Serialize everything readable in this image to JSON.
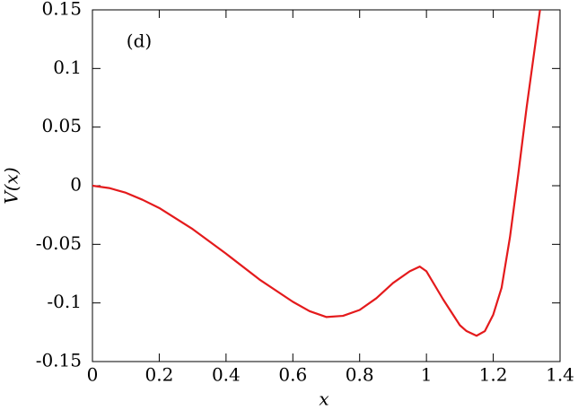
{
  "chart_data": {
    "type": "line",
    "annotation": "(d)",
    "x_label": "x",
    "y_label": "V(x)",
    "x": [
      0,
      0.05,
      0.1,
      0.15,
      0.2,
      0.3,
      0.4,
      0.5,
      0.6,
      0.65,
      0.7,
      0.75,
      0.8,
      0.85,
      0.9,
      0.95,
      0.98,
      1.0,
      1.05,
      1.1,
      1.12,
      1.15,
      1.175,
      1.2,
      1.225,
      1.25,
      1.275,
      1.3,
      1.34
    ],
    "series": [
      {
        "color": "#e41a1c",
        "values": [
          0,
          -0.002,
          -0.006,
          -0.012,
          -0.019,
          -0.037,
          -0.058,
          -0.08,
          -0.099,
          -0.107,
          -0.112,
          -0.111,
          -0.106,
          -0.096,
          -0.083,
          -0.073,
          -0.069,
          -0.073,
          -0.097,
          -0.119,
          -0.124,
          -0.128,
          -0.124,
          -0.11,
          -0.087,
          -0.044,
          0.01,
          0.067,
          0.15
        ]
      }
    ],
    "xlim": [
      0,
      1.4
    ],
    "xticks": [
      0,
      0.2,
      0.4,
      0.6,
      0.8,
      1,
      1.2,
      1.4
    ],
    "ylim": [
      -0.15,
      0.15
    ],
    "yticks": [
      -0.15,
      -0.1,
      -0.05,
      0,
      0.05,
      0.1,
      0.15
    ]
  }
}
